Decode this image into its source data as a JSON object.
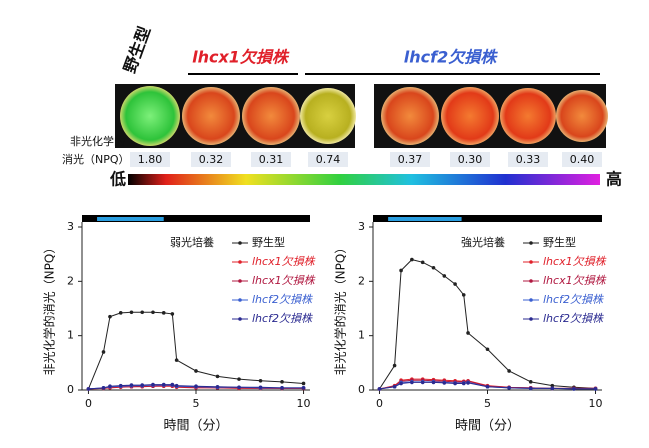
{
  "figure": {
    "strains": [
      "野生型",
      "lhcx1欠損株",
      "lhcf2欠損株"
    ],
    "npq_label": [
      "非光化学的",
      "消光（NPQ）"
    ],
    "npq_values": [
      "1.80",
      "0.32",
      "0.31",
      "0.74",
      "0.37",
      "0.30",
      "0.33",
      "0.40"
    ],
    "colorbar": {
      "low": "低",
      "high": "高"
    }
  },
  "chart_data": [
    {
      "type": "line",
      "title": "弱光培養",
      "xlabel": "時間（分）",
      "ylabel": "非光化学的消光（NPQ）",
      "xlim": [
        -0.3,
        10.3
      ],
      "xticks": [
        0,
        5,
        10
      ],
      "ylim": [
        0,
        3
      ],
      "yticks": [
        0,
        1,
        2,
        3
      ],
      "light_period": [
        0.4,
        3.5
      ],
      "x": [
        0,
        0.7,
        1,
        1.5,
        2,
        2.5,
        3,
        3.5,
        3.9,
        4.1,
        5,
        6,
        7,
        8,
        9,
        10
      ],
      "series": [
        {
          "name": "野生型",
          "color": "#222222",
          "values": [
            0.02,
            0.7,
            1.35,
            1.42,
            1.43,
            1.43,
            1.43,
            1.42,
            1.4,
            0.55,
            0.35,
            0.25,
            0.2,
            0.17,
            0.15,
            0.12
          ]
        },
        {
          "name": "lhcx1欠損株",
          "color": "#e0202a",
          "values": [
            0.02,
            0.03,
            0.04,
            0.05,
            0.06,
            0.06,
            0.07,
            0.07,
            0.07,
            0.05,
            0.04,
            0.04,
            0.03,
            0.03,
            0.03,
            0.03
          ]
        },
        {
          "name": "lhcx1欠損株",
          "color": "#b01840",
          "values": [
            0.02,
            0.03,
            0.05,
            0.06,
            0.06,
            0.07,
            0.07,
            0.08,
            0.08,
            0.06,
            0.05,
            0.04,
            0.04,
            0.03,
            0.03,
            0.03
          ]
        },
        {
          "name": "lhcf2欠損株",
          "color": "#3a5fd0",
          "values": [
            0.02,
            0.04,
            0.06,
            0.07,
            0.08,
            0.08,
            0.09,
            0.09,
            0.09,
            0.07,
            0.06,
            0.05,
            0.05,
            0.04,
            0.04,
            0.04
          ]
        },
        {
          "name": "lhcf2欠損株",
          "color": "#2a2a90",
          "values": [
            0.02,
            0.04,
            0.07,
            0.08,
            0.09,
            0.09,
            0.1,
            0.1,
            0.1,
            0.08,
            0.07,
            0.06,
            0.05,
            0.05,
            0.04,
            0.04
          ]
        }
      ]
    },
    {
      "type": "line",
      "title": "強光培養",
      "xlabel": "時間（分）",
      "ylabel": "非光化学的消光（NPQ）",
      "xlim": [
        -0.3,
        10.3
      ],
      "xticks": [
        0,
        5,
        10
      ],
      "ylim": [
        0,
        3
      ],
      "yticks": [
        0,
        1,
        2,
        3
      ],
      "light_period": [
        0.4,
        3.8
      ],
      "x": [
        0,
        0.7,
        1,
        1.5,
        2,
        2.5,
        3,
        3.5,
        3.9,
        4.1,
        5,
        6,
        7,
        8,
        9,
        10
      ],
      "series": [
        {
          "name": "野生型",
          "color": "#222222",
          "values": [
            0.02,
            0.45,
            2.2,
            2.4,
            2.35,
            2.25,
            2.1,
            1.95,
            1.75,
            1.05,
            0.75,
            0.35,
            0.15,
            0.08,
            0.05,
            0.03
          ]
        },
        {
          "name": "lhcx1欠損株",
          "color": "#e0202a",
          "values": [
            0.02,
            0.08,
            0.18,
            0.2,
            0.2,
            0.19,
            0.18,
            0.17,
            0.16,
            0.17,
            0.08,
            0.05,
            0.04,
            0.03,
            0.03,
            0.03
          ]
        },
        {
          "name": "lhcx1欠損株",
          "color": "#b01840",
          "values": [
            0.02,
            0.07,
            0.16,
            0.18,
            0.18,
            0.17,
            0.16,
            0.15,
            0.15,
            0.16,
            0.07,
            0.05,
            0.04,
            0.03,
            0.03,
            0.03
          ]
        },
        {
          "name": "lhcf2欠損株",
          "color": "#3a5fd0",
          "values": [
            0.02,
            0.06,
            0.14,
            0.15,
            0.15,
            0.15,
            0.14,
            0.13,
            0.13,
            0.14,
            0.06,
            0.04,
            0.03,
            0.03,
            0.02,
            0.02
          ]
        },
        {
          "name": "lhcf2欠損株",
          "color": "#2a2a90",
          "values": [
            0.02,
            0.06,
            0.12,
            0.14,
            0.14,
            0.14,
            0.13,
            0.12,
            0.12,
            0.13,
            0.06,
            0.04,
            0.03,
            0.03,
            0.02,
            0.02
          ]
        }
      ]
    }
  ]
}
